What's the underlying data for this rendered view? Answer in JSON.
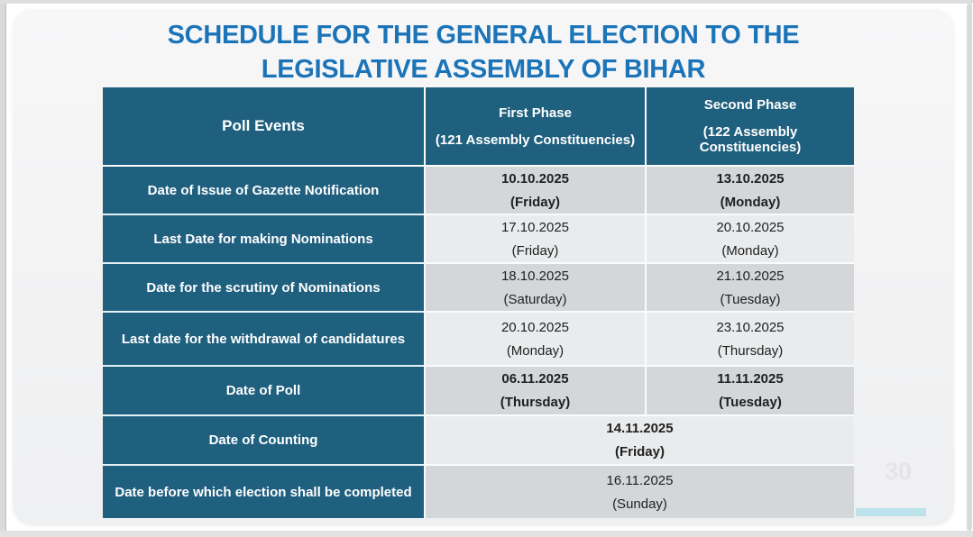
{
  "title": {
    "line1": "SCHEDULE FOR THE GENERAL ELECTION TO THE",
    "line2": "LEGISLATIVE ASSEMBLY OF BIHAR"
  },
  "page_number": "30",
  "table": {
    "headers": {
      "event": "Poll Events",
      "phase1_line1": "First Phase",
      "phase1_line2": "(121 Assembly Constituencies)",
      "phase2_line1": "Second Phase",
      "phase2_line2": "(122 Assembly Constituencies)"
    },
    "rows": [
      {
        "event": "Date of Issue of Gazette Notification",
        "phase1_date": "10.10.2025",
        "phase1_day": "(Friday)",
        "phase2_date": "13.10.2025",
        "phase2_day": "(Monday)"
      },
      {
        "event": "Last Date for making Nominations",
        "phase1_date": "17.10.2025",
        "phase1_day": "(Friday)",
        "phase2_date": "20.10.2025",
        "phase2_day": "(Monday)"
      },
      {
        "event": "Date for the scrutiny of Nominations",
        "phase1_date": "18.10.2025",
        "phase1_day": "(Saturday)",
        "phase2_date": "21.10.2025",
        "phase2_day": "(Tuesday)"
      },
      {
        "event": "Last date for the withdrawal of candidatures",
        "phase1_date": "20.10.2025",
        "phase1_day": "(Monday)",
        "phase2_date": "23.10.2025",
        "phase2_day": "(Thursday)"
      },
      {
        "event": "Date of Poll",
        "phase1_date": "06.11.2025",
        "phase1_day": "(Thursday)",
        "phase2_date": "11.11.2025",
        "phase2_day": "(Tuesday)"
      },
      {
        "event": "Date of Counting",
        "combined_date": "14.11.2025",
        "combined_day": "(Friday)"
      },
      {
        "event": "Date before which election shall be completed",
        "combined_date": "16.11.2025",
        "combined_day": "(Sunday)"
      }
    ]
  },
  "colors": {
    "title_blue": "#1b74b8",
    "header_teal": "#20607f",
    "row_shade_dark": "#d3d7da",
    "row_shade_light": "#e9ebed",
    "cyan_accent": "#bce3ec",
    "slide_background": "#f2f2f3"
  }
}
